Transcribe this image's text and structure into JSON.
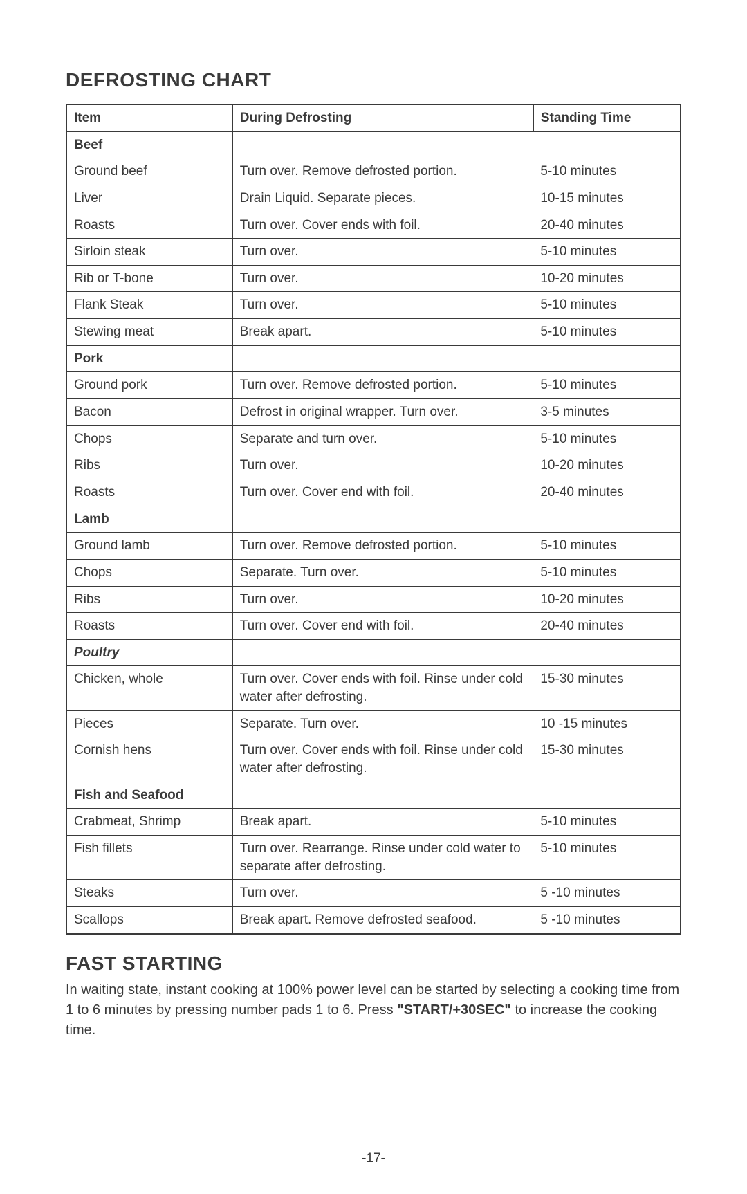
{
  "title": "DEFROSTING CHART",
  "headers": {
    "item": "Item",
    "instr": "During Defrosting",
    "time": "Standing Time"
  },
  "sections": [
    {
      "name": "Beef",
      "italic": false,
      "rows": [
        {
          "item": "Ground beef",
          "instr": "Turn over.  Remove defrosted portion.",
          "time": "5-10 minutes"
        },
        {
          "item": "Liver",
          "instr": "Drain Liquid. Separate pieces.",
          "time": "10-15 minutes"
        },
        {
          "item": "Roasts",
          "instr": "Turn over. Cover ends with foil.",
          "time": "20-40 minutes"
        },
        {
          "item": "Sirloin steak",
          "instr": "Turn over.",
          "time": "5-10 minutes"
        },
        {
          "item": "Rib or T-bone",
          "instr": "Turn over.",
          "time": "10-20 minutes"
        },
        {
          "item": "Flank Steak",
          "instr": "Turn over.",
          "time": "5-10 minutes"
        },
        {
          "item": "Stewing meat",
          "instr": "Break apart.",
          "time": "5-10 minutes"
        }
      ]
    },
    {
      "name": "Pork",
      "italic": false,
      "rows": [
        {
          "item": "Ground pork",
          "instr": "Turn over. Remove defrosted portion.",
          "time": "5-10 minutes"
        },
        {
          "item": "Bacon",
          "instr": "Defrost in original wrapper. Turn over.",
          "time": "3-5 minutes"
        },
        {
          "item": "Chops",
          "instr": "Separate and turn over.",
          "time": "5-10 minutes"
        },
        {
          "item": "Ribs",
          "instr": "Turn over.",
          "time": "10-20 minutes"
        },
        {
          "item": "Roasts",
          "instr": "Turn over. Cover end with foil.",
          "time": "20-40 minutes"
        }
      ]
    },
    {
      "name": "Lamb",
      "italic": false,
      "rows": [
        {
          "item": "Ground lamb",
          "instr": "Turn over. Remove defrosted portion.",
          "time": "5-10 minutes"
        },
        {
          "item": "Chops",
          "instr": "Separate. Turn over.",
          "time": "5-10 minutes"
        },
        {
          "item": "Ribs",
          "instr": "Turn over.",
          "time": "10-20 minutes"
        },
        {
          "item": "Roasts",
          "instr": "Turn over. Cover end with foil.",
          "time": "20-40 minutes"
        }
      ]
    },
    {
      "name": "Poultry",
      "italic": true,
      "rows": [
        {
          "item": "Chicken, whole",
          "instr": "Turn over. Cover ends with foil. Rinse under cold water after defrosting.",
          "time": "15-30 minutes"
        },
        {
          "item": "Pieces",
          "instr": "Separate. Turn over.",
          "time": "10 -15 minutes"
        },
        {
          "item": "Cornish hens",
          "instr": "Turn over. Cover ends with foil. Rinse under cold water after defrosting.",
          "time": "15-30 minutes"
        }
      ]
    },
    {
      "name": "Fish and Seafood",
      "italic": false,
      "rows": [
        {
          "item": "Crabmeat, Shrimp",
          "instr": "Break apart.",
          "time": "5-10 minutes"
        },
        {
          "item": "Fish fillets",
          "instr": "Turn over. Rearrange. Rinse under cold water to separate after defrosting.",
          "time": "5-10 minutes"
        },
        {
          "item": "Steaks",
          "instr": "Turn over.",
          "time": "5 -10 minutes"
        },
        {
          "item": "Scallops",
          "instr": "Break apart. Remove defrosted seafood.",
          "time": "5 -10 minutes"
        }
      ]
    }
  ],
  "fast": {
    "title": "FAST STARTING",
    "text_a": "In waiting state, instant cooking at 100% power level can be started by selecting a cooking time from 1 to 6 minutes by pressing number pads 1 to 6. Press ",
    "bold": "\"START/+30SEC\"",
    "text_b": " to increase the cooking time."
  },
  "page_num": "-17-"
}
